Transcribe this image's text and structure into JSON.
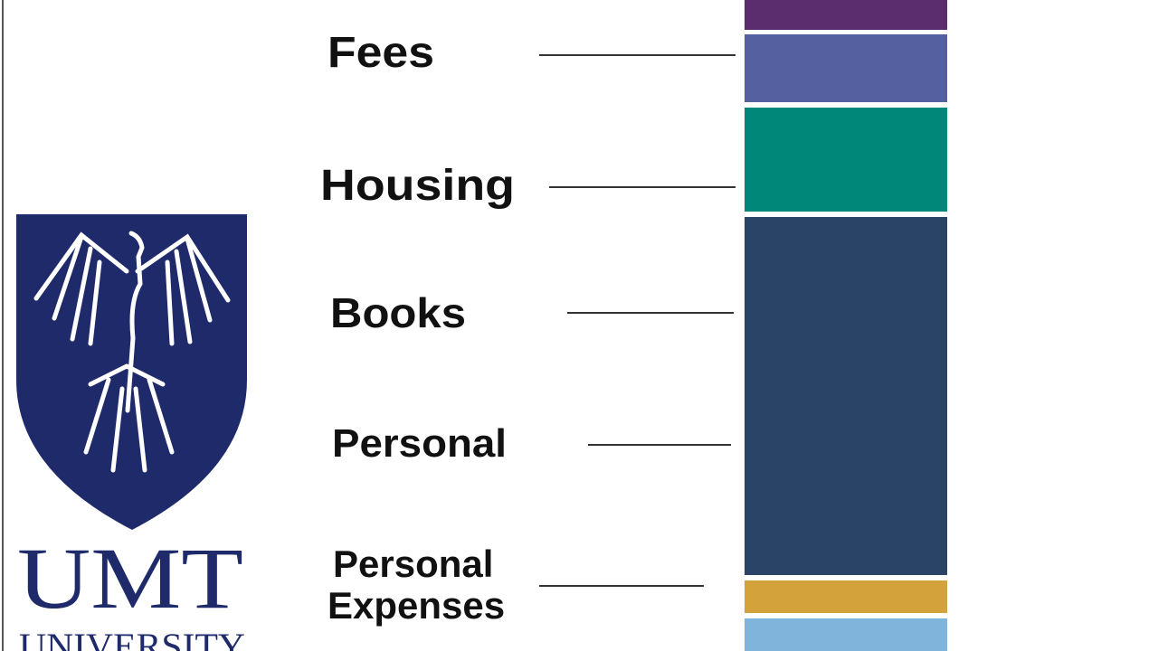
{
  "logo": {
    "name": "UMT",
    "subtitle": "UNIVERSITY"
  },
  "labels": [
    "Fees",
    "Housing",
    "Books",
    "Personal",
    "Personal\nExpenses"
  ]
}
